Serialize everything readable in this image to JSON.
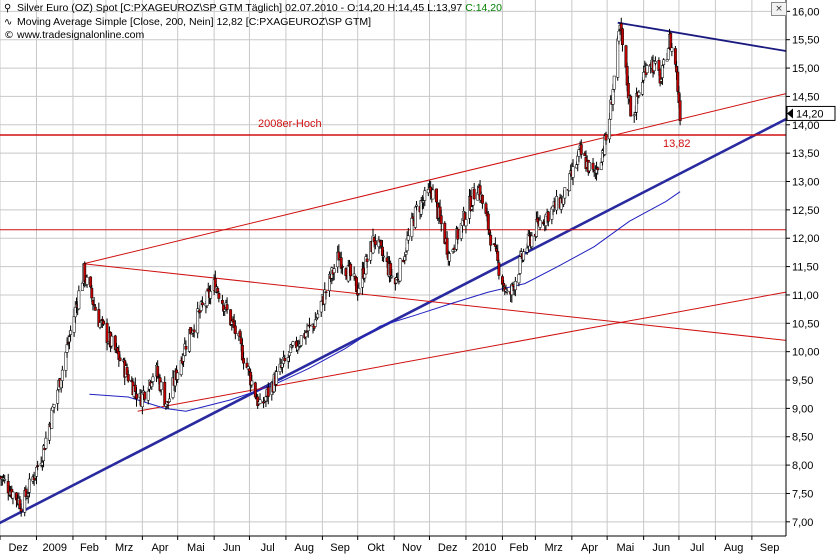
{
  "legend": {
    "line1": {
      "name": "Silver Euro (OZ) Spot [C:PXAGEUROZ\\SP GTM  Täglich]",
      "date": "02.07.2010",
      "ohlc": "O:14,20 H:14,45 L:13,97",
      "close": "C:14,20"
    },
    "line2": {
      "name": "Moving Average Simple [Close, 200, Nein]",
      "value": "12,82",
      "source": "[C:PXAGEUROZ\\SP GTM]"
    },
    "line3": {
      "text": "www.tradesignalonline.com"
    }
  },
  "close_button": "×",
  "colors": {
    "background": "#ffffff",
    "grid": "#c8c8c8",
    "candle_up": "#ffffff",
    "candle_down": "#c00000",
    "candle_outline": "#000000",
    "moving_average": "#2020c0",
    "support_line": "#2a2aa0",
    "red_lines": "#d01010",
    "price_box_bg": "#ffffff",
    "price_box_text": "#000000"
  },
  "chart_data": {
    "type": "candlestick",
    "title": "Silver Euro (OZ) Spot [C:PXAGEUROZ\\SP GTM  Täglich]",
    "x_axis": {
      "labels": [
        "Dez",
        "2009",
        "Feb",
        "Mrz",
        "Apr",
        "Mai",
        "Jun",
        "Jul",
        "Aug",
        "Sep",
        "Okt",
        "Nov",
        "Dez",
        "2010",
        "Feb",
        "Mrz",
        "Apr",
        "Mai",
        "Jun",
        "Jul",
        "Aug",
        "Sep"
      ],
      "range": [
        "2008-12-01",
        "2010-09-30"
      ]
    },
    "y_axis": {
      "ticks": [
        "7,00",
        "7,50",
        "8,00",
        "8,50",
        "9,00",
        "9,50",
        "10,00",
        "10,50",
        "11,00",
        "11,50",
        "12,00",
        "12,50",
        "13,00",
        "13,50",
        "14,00",
        "14,50",
        "15,00",
        "15,50",
        "16,00"
      ],
      "range": [
        6.75,
        16.2
      ],
      "position": "right"
    },
    "grid": true,
    "last_price": "14,20",
    "anchors": [
      {
        "date": "2008-12-01",
        "price": 7.8
      },
      {
        "date": "2008-12-20",
        "price": 7.3
      },
      {
        "date": "2009-01-06",
        "price": 8.2
      },
      {
        "date": "2009-01-22",
        "price": 9.6
      },
      {
        "date": "2009-02-10",
        "price": 11.4
      },
      {
        "date": "2009-02-24",
        "price": 10.5
      },
      {
        "date": "2009-03-12",
        "price": 9.9
      },
      {
        "date": "2009-03-30",
        "price": 9.15
      },
      {
        "date": "2009-04-12",
        "price": 9.7
      },
      {
        "date": "2009-04-22",
        "price": 9.05
      },
      {
        "date": "2009-05-10",
        "price": 10.3
      },
      {
        "date": "2009-06-02",
        "price": 11.2
      },
      {
        "date": "2009-06-20",
        "price": 10.3
      },
      {
        "date": "2009-07-01",
        "price": 9.6
      },
      {
        "date": "2009-07-10",
        "price": 9.0
      },
      {
        "date": "2009-07-25",
        "price": 9.6
      },
      {
        "date": "2009-08-12",
        "price": 10.2
      },
      {
        "date": "2009-08-25",
        "price": 10.5
      },
      {
        "date": "2009-09-15",
        "price": 11.7
      },
      {
        "date": "2009-10-01",
        "price": 11.1
      },
      {
        "date": "2009-10-15",
        "price": 12.0
      },
      {
        "date": "2009-11-02",
        "price": 11.2
      },
      {
        "date": "2009-11-20",
        "price": 12.5
      },
      {
        "date": "2009-12-03",
        "price": 12.85
      },
      {
        "date": "2009-12-18",
        "price": 11.7
      },
      {
        "date": "2010-01-11",
        "price": 12.95
      },
      {
        "date": "2010-01-26",
        "price": 11.7
      },
      {
        "date": "2010-02-06",
        "price": 10.9
      },
      {
        "date": "2010-02-20",
        "price": 11.8
      },
      {
        "date": "2010-03-05",
        "price": 12.3
      },
      {
        "date": "2010-03-25",
        "price": 12.7
      },
      {
        "date": "2010-04-08",
        "price": 13.5
      },
      {
        "date": "2010-04-20",
        "price": 13.1
      },
      {
        "date": "2010-05-01",
        "price": 13.8
      },
      {
        "date": "2010-05-12",
        "price": 15.7
      },
      {
        "date": "2010-05-22",
        "price": 14.1
      },
      {
        "date": "2010-06-05",
        "price": 15.2
      },
      {
        "date": "2010-06-16",
        "price": 14.8
      },
      {
        "date": "2010-06-23",
        "price": 15.5
      },
      {
        "date": "2010-06-28",
        "price": 15.1
      },
      {
        "date": "2010-07-02",
        "price": 14.2
      }
    ],
    "moving_average_200": [
      {
        "date": "2009-02-15",
        "price": 9.25
      },
      {
        "date": "2009-03-20",
        "price": 9.2
      },
      {
        "date": "2009-04-20",
        "price": 9.0
      },
      {
        "date": "2009-05-08",
        "price": 8.95
      },
      {
        "date": "2009-06-15",
        "price": 9.15
      },
      {
        "date": "2009-07-20",
        "price": 9.4
      },
      {
        "date": "2009-08-20",
        "price": 9.7
      },
      {
        "date": "2009-09-20",
        "price": 10.05
      },
      {
        "date": "2009-10-20",
        "price": 10.45
      },
      {
        "date": "2009-11-20",
        "price": 10.65
      },
      {
        "date": "2009-12-20",
        "price": 10.85
      },
      {
        "date": "2010-01-20",
        "price": 11.05
      },
      {
        "date": "2010-02-20",
        "price": 11.2
      },
      {
        "date": "2010-03-20",
        "price": 11.5
      },
      {
        "date": "2010-04-20",
        "price": 11.85
      },
      {
        "date": "2010-05-20",
        "price": 12.3
      },
      {
        "date": "2010-06-20",
        "price": 12.65
      },
      {
        "date": "2010-07-02",
        "price": 12.82
      }
    ],
    "trendlines": [
      {
        "kind": "support",
        "color": "#2a2aa0",
        "from": {
          "date": "2008-11-28",
          "price": 6.95
        },
        "to": {
          "date": "2010-09-30",
          "price": 14.1
        }
      },
      {
        "kind": "resistance",
        "color": "#1a1a80",
        "from": {
          "date": "2010-05-10",
          "price": 15.8
        },
        "to": {
          "date": "2010-09-30",
          "price": 15.3
        }
      },
      {
        "kind": "channel-upper",
        "color": "#d01010",
        "from": {
          "date": "2009-02-10",
          "price": 11.55
        },
        "to": {
          "date": "2010-09-30",
          "price": 14.55
        }
      },
      {
        "kind": "channel-lower",
        "color": "#d01010",
        "from": {
          "date": "2009-03-28",
          "price": 8.95
        },
        "to": {
          "date": "2010-09-30",
          "price": 11.05
        }
      },
      {
        "kind": "falling",
        "color": "#d01010",
        "from": {
          "date": "2009-02-10",
          "price": 11.55
        },
        "to": {
          "date": "2010-09-30",
          "price": 10.2
        }
      }
    ],
    "horizontal_lines": [
      {
        "price": 13.82,
        "label": "2008er-Hoch",
        "value_label": "13,82",
        "color": "#d01010"
      },
      {
        "price": 12.15,
        "label": "",
        "value_label": "",
        "color": "#d01010"
      }
    ]
  }
}
